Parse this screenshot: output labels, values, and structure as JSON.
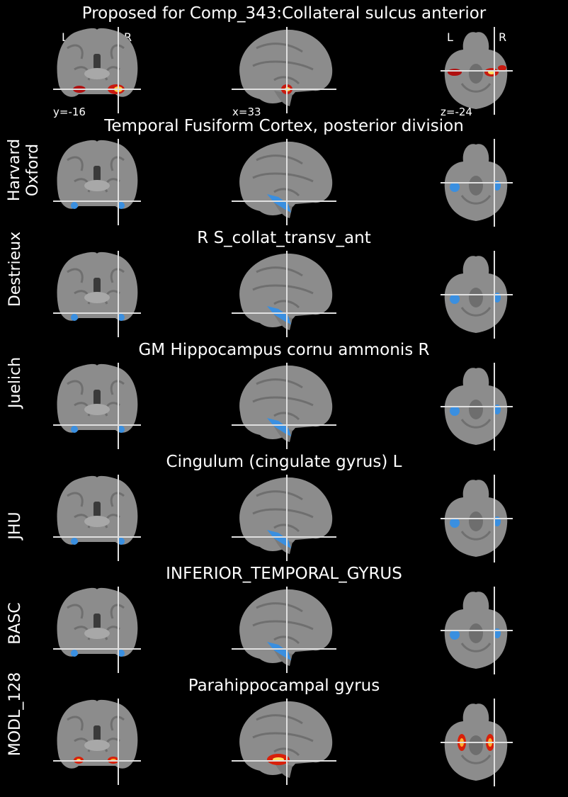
{
  "header": {
    "title": "Proposed for Comp_343:Collateral sulcus anterior",
    "coords": {
      "coronal": "y=-16",
      "sagittal": "x=33",
      "axial": "z=-24"
    },
    "orientation": {
      "left": "L",
      "right": "R"
    }
  },
  "rows": [
    {
      "atlas": "Harvard Oxford",
      "atlas_lines": [
        "Harvard",
        "Oxford"
      ],
      "title": "Temporal Fusiform Cortex, posterior division",
      "overlay": "blue"
    },
    {
      "atlas": "Destrieux",
      "atlas_lines": [
        "Destrieux"
      ],
      "title": "R S_collat_transv_ant",
      "overlay": "blue"
    },
    {
      "atlas": "Juelich",
      "atlas_lines": [
        "Juelich"
      ],
      "title": "GM Hippocampus cornu ammonis R",
      "overlay": "blue"
    },
    {
      "atlas": "JHU",
      "atlas_lines": [
        "JHU"
      ],
      "title": "Cingulum (cingulate gyrus) L",
      "overlay": "blue"
    },
    {
      "atlas": "BASC",
      "atlas_lines": [
        "BASC"
      ],
      "title": "INFERIOR_TEMPORAL_GYRUS",
      "overlay": "blue"
    },
    {
      "atlas": "MODL_128",
      "atlas_lines": [
        "MODL_128"
      ],
      "title": "Parahippocampal gyrus",
      "overlay": "hot"
    }
  ],
  "colors": {
    "background": "#000000",
    "blue_overlay": "#3a8fe0",
    "hot_overlay": "#d8200a",
    "brain": "#8c8c8c",
    "crosshair": "#e0e0e0"
  }
}
